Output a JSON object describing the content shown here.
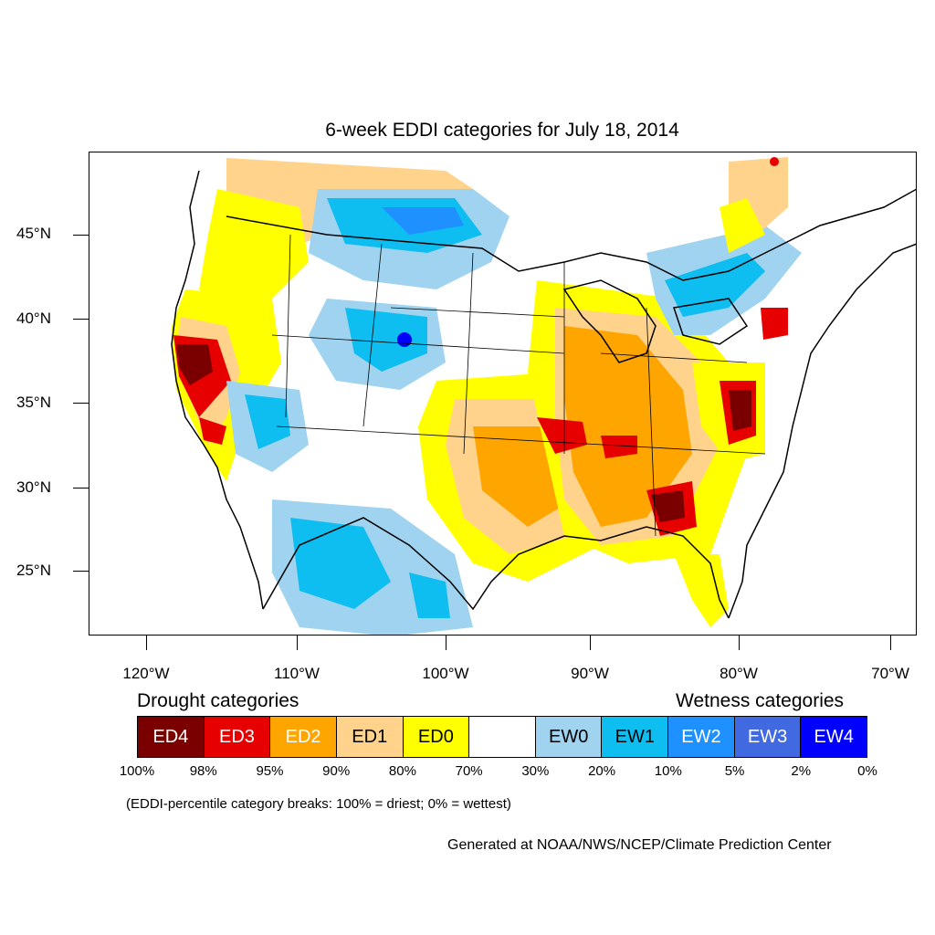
{
  "title": "6-week EDDI categories for July 18, 2014",
  "axes": {
    "lat_labels": [
      "45°N",
      "40°N",
      "35°N",
      "30°N",
      "25°N"
    ],
    "lon_labels": [
      "120°W",
      "110°W",
      "100°W",
      "90°W",
      "80°W",
      "70°W"
    ]
  },
  "legend": {
    "drought_heading": "Drought categories",
    "wetness_heading": "Wetness categories",
    "categories": [
      {
        "label": "ED4",
        "color": "#7a0000",
        "text_color": "#ffffff"
      },
      {
        "label": "ED3",
        "color": "#e60000",
        "text_color": "#ffffff"
      },
      {
        "label": "ED2",
        "color": "#ffa500",
        "text_color": "#ffffff"
      },
      {
        "label": "ED1",
        "color": "#ffd38c",
        "text_color": "#000000"
      },
      {
        "label": "ED0",
        "color": "#ffff00",
        "text_color": "#000000"
      },
      {
        "label": "",
        "color": "#ffffff",
        "text_color": "#000000"
      },
      {
        "label": "EW0",
        "color": "#9fd3f0",
        "text_color": "#000000"
      },
      {
        "label": "EW1",
        "color": "#0fbef0",
        "text_color": "#000000"
      },
      {
        "label": "EW2",
        "color": "#1e90ff",
        "text_color": "#ffffff"
      },
      {
        "label": "EW3",
        "color": "#4169e1",
        "text_color": "#ffffff"
      },
      {
        "label": "EW4",
        "color": "#0000ff",
        "text_color": "#ffffff"
      }
    ],
    "breaks": [
      "100%",
      "98%",
      "95%",
      "90%",
      "80%",
      "70%",
      "30%",
      "20%",
      "10%",
      "5%",
      "2%",
      "0%"
    ]
  },
  "note": "(EDDI-percentile category breaks: 100% = driest; 0% = wettest)",
  "credit": "Generated at NOAA/NWS/NCEP/Climate Prediction Center"
}
